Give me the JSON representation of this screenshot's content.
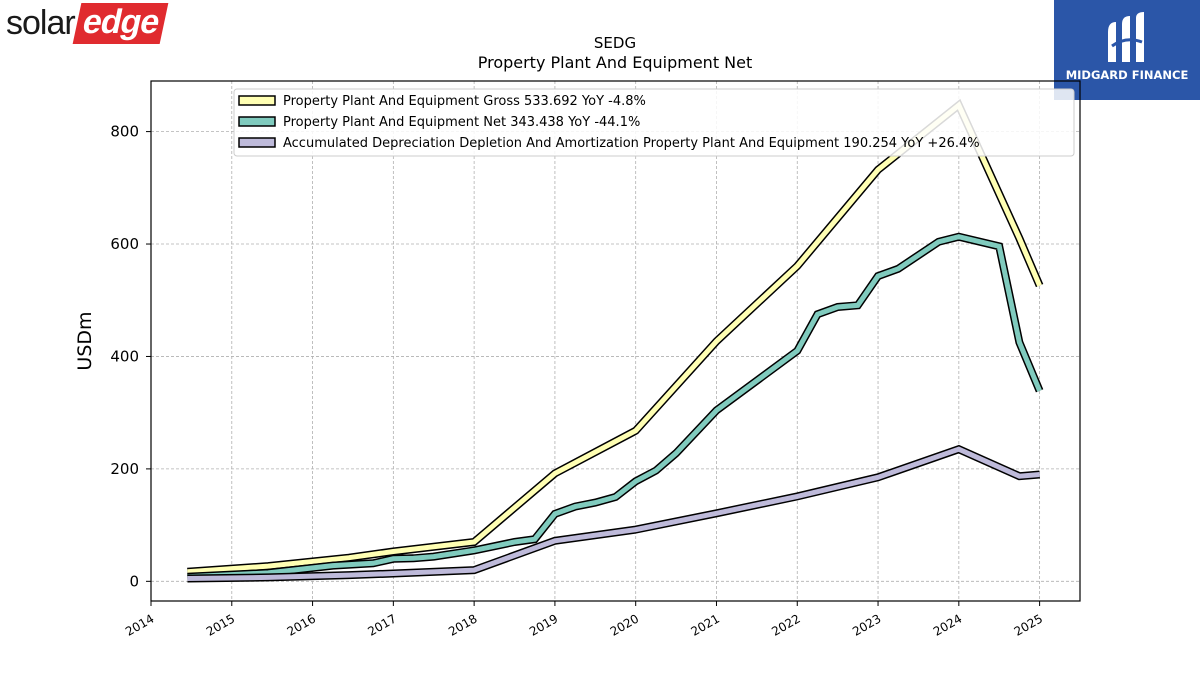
{
  "logos": {
    "left_part1": "solar",
    "left_part2": "edge",
    "right_text": "MIDGARD FINANCE"
  },
  "chart_data": {
    "type": "line",
    "title": "SEDG",
    "subtitle": "Property Plant And Equipment Net",
    "ylabel": "USDm",
    "xlabel": "",
    "ylim": [
      -35,
      890
    ],
    "xlim": [
      2014.0,
      2025.5
    ],
    "x_ticks": [
      "2014",
      "2015",
      "2016",
      "2017",
      "2018",
      "2019",
      "2020",
      "2021",
      "2022",
      "2023",
      "2024",
      "2025"
    ],
    "y_ticks": [
      0,
      200,
      400,
      600,
      800
    ],
    "grid": true,
    "legend_position": "top-left",
    "series": [
      {
        "name": "Property Plant And Equipment Gross",
        "legend_label": "Property Plant And Equipment Gross  533.692 YoY -4.8%",
        "color": "#ffffb3",
        "points": [
          [
            2014.45,
            17
          ],
          [
            2015.45,
            27
          ],
          [
            2016.45,
            42
          ],
          [
            2017.0,
            53
          ],
          [
            2018.0,
            70
          ],
          [
            2019.0,
            192
          ],
          [
            2020.0,
            268
          ],
          [
            2021.0,
            427
          ],
          [
            2022.0,
            561
          ],
          [
            2023.0,
            732
          ],
          [
            2024.0,
            847
          ],
          [
            2024.75,
            610
          ],
          [
            2025.0,
            526
          ]
        ]
      },
      {
        "name": "Property Plant And Equipment Net",
        "legend_label": "Property Plant And Equipment Net  343.438 YoY -44.1%",
        "color": "#80cbbe",
        "points": [
          [
            2014.45,
            8
          ],
          [
            2015.45,
            15
          ],
          [
            2016.25,
            28
          ],
          [
            2016.75,
            32
          ],
          [
            2017.0,
            40
          ],
          [
            2017.25,
            41
          ],
          [
            2017.5,
            44
          ],
          [
            2018.0,
            55
          ],
          [
            2018.5,
            70
          ],
          [
            2018.75,
            75
          ],
          [
            2019.0,
            120
          ],
          [
            2019.25,
            133
          ],
          [
            2019.5,
            140
          ],
          [
            2019.75,
            150
          ],
          [
            2020.0,
            178
          ],
          [
            2020.25,
            197
          ],
          [
            2020.5,
            228
          ],
          [
            2021.0,
            304
          ],
          [
            2022.0,
            410
          ],
          [
            2022.25,
            475
          ],
          [
            2022.5,
            488
          ],
          [
            2022.75,
            491
          ],
          [
            2023.0,
            543
          ],
          [
            2023.25,
            556
          ],
          [
            2023.5,
            580
          ],
          [
            2023.75,
            604
          ],
          [
            2024.0,
            613
          ],
          [
            2024.5,
            596
          ],
          [
            2024.75,
            425
          ],
          [
            2025.0,
            339
          ]
        ]
      },
      {
        "name": "Accumulated Depreciation Depletion And Amortization Property Plant And Equipment",
        "legend_label": "Accumulated Depreciation Depletion And Amortization Property Plant And Equipment  190.254 YoY +26.4%",
        "color": "#bebada",
        "points": [
          [
            2014.45,
            5
          ],
          [
            2015.45,
            7
          ],
          [
            2016.45,
            11
          ],
          [
            2017.0,
            14
          ],
          [
            2018.0,
            20
          ],
          [
            2019.0,
            72
          ],
          [
            2020.0,
            92
          ],
          [
            2021.0,
            121
          ],
          [
            2022.0,
            151
          ],
          [
            2023.0,
            185
          ],
          [
            2024.0,
            235
          ],
          [
            2024.75,
            187
          ],
          [
            2025.0,
            190
          ]
        ]
      }
    ]
  }
}
